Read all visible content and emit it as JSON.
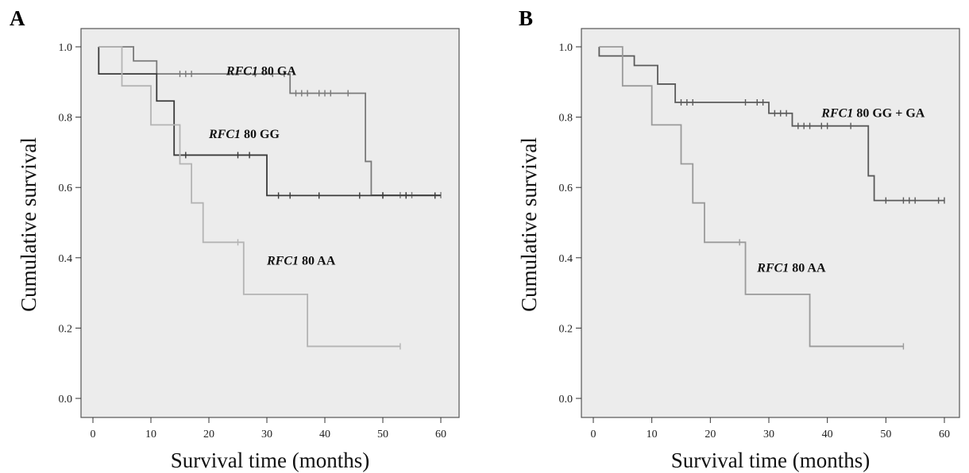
{
  "chart_data": [
    {
      "type": "line",
      "panel": "A",
      "xlabel": "Survival time (months)",
      "ylabel": "Cumulative survival",
      "xlim": [
        0,
        60
      ],
      "ylim": [
        0.0,
        1.0
      ],
      "xticks": [
        0,
        10,
        20,
        30,
        40,
        50,
        60
      ],
      "yticks": [
        0.0,
        0.2,
        0.4,
        0.6,
        0.8,
        1.0
      ],
      "grid": false,
      "series": [
        {
          "gene": "RFC1",
          "genotype": "80 GA",
          "color": "#7a7a7a",
          "steps": [
            [
              1,
              1.0
            ],
            [
              7,
              0.96
            ],
            [
              11,
              0.923
            ],
            [
              34,
              0.868
            ],
            [
              47,
              0.674
            ],
            [
              48,
              0.578
            ],
            [
              60,
              0.578
            ]
          ],
          "censored": [
            [
              15,
              0.923
            ],
            [
              16,
              0.923
            ],
            [
              17,
              0.923
            ],
            [
              28,
              0.923
            ],
            [
              31,
              0.923
            ],
            [
              33,
              0.923
            ],
            [
              35,
              0.868
            ],
            [
              36,
              0.868
            ],
            [
              37,
              0.868
            ],
            [
              39,
              0.868
            ],
            [
              40,
              0.868
            ],
            [
              41,
              0.868
            ],
            [
              44,
              0.868
            ],
            [
              50,
              0.578
            ],
            [
              53,
              0.578
            ],
            [
              54,
              0.578
            ],
            [
              55,
              0.578
            ],
            [
              60,
              0.578
            ]
          ],
          "label_pos": [
            23,
            0.92
          ]
        },
        {
          "gene": "RFC1",
          "genotype": "80 GG",
          "color": "#3a3a3a",
          "steps": [
            [
              1,
              1.0
            ],
            [
              1,
              0.923
            ],
            [
              11,
              0.846
            ],
            [
              14,
              0.692
            ],
            [
              30,
              0.577
            ],
            [
              60,
              0.577
            ]
          ],
          "censored": [
            [
              16,
              0.692
            ],
            [
              25,
              0.692
            ],
            [
              27,
              0.692
            ],
            [
              32,
              0.577
            ],
            [
              34,
              0.577
            ],
            [
              39,
              0.577
            ],
            [
              46,
              0.577
            ],
            [
              50,
              0.577
            ],
            [
              54,
              0.577
            ],
            [
              59,
              0.577
            ]
          ],
          "label_pos": [
            20,
            0.74
          ]
        },
        {
          "gene": "RFC1",
          "genotype": "80 AA",
          "color": "#b4b4b4",
          "steps": [
            [
              1,
              1.0
            ],
            [
              5,
              0.889
            ],
            [
              10,
              0.778
            ],
            [
              15,
              0.667
            ],
            [
              17,
              0.556
            ],
            [
              19,
              0.444
            ],
            [
              26,
              0.296
            ],
            [
              37,
              0.148
            ],
            [
              53,
              0.148
            ]
          ],
          "censored": [
            [
              25,
              0.444
            ],
            [
              53,
              0.148
            ]
          ],
          "label_pos": [
            30,
            0.38
          ]
        }
      ]
    },
    {
      "type": "line",
      "panel": "B",
      "xlabel": "Survival time (months)",
      "ylabel": "Cumulative survival",
      "xlim": [
        0,
        60
      ],
      "ylim": [
        0.0,
        1.0
      ],
      "xticks": [
        0,
        10,
        20,
        30,
        40,
        50,
        60
      ],
      "yticks": [
        0.0,
        0.2,
        0.4,
        0.6,
        0.8,
        1.0
      ],
      "grid": false,
      "series": [
        {
          "gene": "RFC1",
          "genotype": "80 GG + GA",
          "color": "#5a5a5a",
          "steps": [
            [
              1,
              1.0
            ],
            [
              1,
              0.974
            ],
            [
              7,
              0.947
            ],
            [
              11,
              0.894
            ],
            [
              14,
              0.842
            ],
            [
              30,
              0.811
            ],
            [
              34,
              0.775
            ],
            [
              47,
              0.633
            ],
            [
              48,
              0.563
            ],
            [
              60,
              0.563
            ]
          ],
          "censored": [
            [
              15,
              0.842
            ],
            [
              16,
              0.842
            ],
            [
              17,
              0.842
            ],
            [
              26,
              0.842
            ],
            [
              28,
              0.842
            ],
            [
              29,
              0.842
            ],
            [
              31,
              0.811
            ],
            [
              32,
              0.811
            ],
            [
              33,
              0.811
            ],
            [
              35,
              0.775
            ],
            [
              36,
              0.775
            ],
            [
              37,
              0.775
            ],
            [
              39,
              0.775
            ],
            [
              40,
              0.775
            ],
            [
              44,
              0.775
            ],
            [
              50,
              0.563
            ],
            [
              53,
              0.563
            ],
            [
              54,
              0.563
            ],
            [
              55,
              0.563
            ],
            [
              59,
              0.563
            ],
            [
              60,
              0.563
            ]
          ],
          "label_pos": [
            39,
            0.8
          ]
        },
        {
          "gene": "RFC1",
          "genotype": "80 AA",
          "color": "#9a9a9a",
          "steps": [
            [
              1,
              1.0
            ],
            [
              5,
              0.889
            ],
            [
              10,
              0.778
            ],
            [
              15,
              0.667
            ],
            [
              17,
              0.556
            ],
            [
              19,
              0.444
            ],
            [
              26,
              0.296
            ],
            [
              37,
              0.148
            ],
            [
              53,
              0.148
            ]
          ],
          "censored": [
            [
              25,
              0.444
            ],
            [
              53,
              0.148
            ]
          ],
          "label_pos": [
            28,
            0.36
          ]
        }
      ]
    }
  ]
}
